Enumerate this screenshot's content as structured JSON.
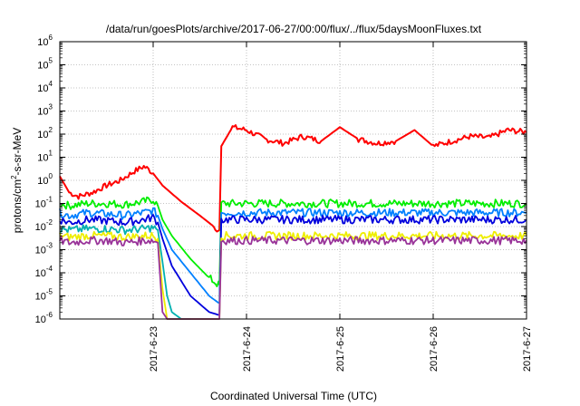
{
  "chart_data": {
    "type": "line",
    "title": "/data/run/goesPlots/archive/2017-06-27/00:00/flux/../flux/5daysMoonFluxes.txt",
    "xlabel": "Coordinated Universal Time (UTC)",
    "ylabel": "protons/cm2-s-sr-MeV",
    "ylabel_parts": {
      "a": "protons/cm",
      "sup": "2",
      "b": "-s-sr-MeV"
    },
    "yscale": "log",
    "ylim": [
      1e-06,
      1000000.0
    ],
    "xlim": [
      "2017-06-22 00:00",
      "2017-06-27 00:00"
    ],
    "grid": true,
    "y_ticks": [
      {
        "value": 1e-06,
        "base": "10",
        "exp": "-6"
      },
      {
        "value": 1e-05,
        "base": "10",
        "exp": "-5"
      },
      {
        "value": 0.0001,
        "base": "10",
        "exp": "-4"
      },
      {
        "value": 0.001,
        "base": "10",
        "exp": "-3"
      },
      {
        "value": 0.01,
        "base": "10",
        "exp": "-2"
      },
      {
        "value": 0.1,
        "base": "10",
        "exp": "-1"
      },
      {
        "value": 1,
        "base": "10",
        "exp": "0"
      },
      {
        "value": 10.0,
        "base": "10",
        "exp": "1"
      },
      {
        "value": 100.0,
        "base": "10",
        "exp": "2"
      },
      {
        "value": 1000.0,
        "base": "10",
        "exp": "3"
      },
      {
        "value": 10000.0,
        "base": "10",
        "exp": "4"
      },
      {
        "value": 100000.0,
        "base": "10",
        "exp": "5"
      },
      {
        "value": 1000000.0,
        "base": "10",
        "exp": "6"
      }
    ],
    "x_ticks": [
      {
        "label": "2017-6-23",
        "day": 1
      },
      {
        "label": "2017-6-24",
        "day": 2
      },
      {
        "label": "2017-6-25",
        "day": 3
      },
      {
        "label": "2017-6-26",
        "day": 4
      },
      {
        "label": "2017-6-27",
        "day": 5
      }
    ],
    "series": [
      {
        "color": "#ff0000",
        "x": [
          0,
          0.1,
          0.2,
          0.35,
          0.5,
          0.65,
          0.8,
          0.9,
          0.95,
          1.0,
          1.1,
          1.3,
          1.5,
          1.65,
          1.7,
          1.71,
          1.73,
          1.85,
          2.0,
          2.2,
          2.4,
          2.6,
          2.8,
          3.0,
          3.2,
          3.4,
          3.6,
          3.8,
          4.0,
          4.2,
          4.4,
          4.6,
          4.8,
          5.0
        ],
        "y": [
          1.5,
          0.3,
          0.2,
          0.3,
          0.6,
          1.0,
          2.5,
          4,
          3,
          2,
          0.6,
          0.12,
          0.03,
          0.01,
          0.007,
          0.007,
          30,
          200,
          150,
          60,
          40,
          80,
          50,
          200,
          60,
          40,
          50,
          150,
          30,
          50,
          80,
          70,
          150,
          120
        ]
      },
      {
        "color": "#00ee00",
        "x": [
          0,
          0.1,
          0.3,
          0.5,
          0.7,
          0.9,
          1.0,
          1.05,
          1.1,
          1.2,
          1.4,
          1.6,
          1.7,
          1.71,
          1.73,
          1.8,
          2.0,
          2.5,
          3.0,
          3.5,
          4.0,
          4.5,
          5.0
        ],
        "y": [
          0.1,
          0.08,
          0.1,
          0.1,
          0.09,
          0.12,
          0.15,
          0.08,
          0.02,
          0.004,
          0.0004,
          6e-05,
          3e-05,
          3e-05,
          0.1,
          0.1,
          0.1,
          0.1,
          0.1,
          0.1,
          0.1,
          0.1,
          0.1
        ]
      },
      {
        "color": "#0080ff",
        "x": [
          0,
          0.1,
          0.3,
          0.5,
          0.7,
          0.9,
          1.0,
          1.05,
          1.1,
          1.2,
          1.4,
          1.6,
          1.7,
          1.71,
          1.73,
          1.8,
          2.0,
          2.5,
          3.0,
          3.5,
          4.0,
          4.5,
          5.0
        ],
        "y": [
          0.04,
          0.03,
          0.04,
          0.035,
          0.03,
          0.04,
          0.05,
          0.03,
          0.008,
          0.001,
          0.0001,
          1e-05,
          5e-06,
          5e-06,
          0.04,
          0.04,
          0.04,
          0.04,
          0.04,
          0.04,
          0.04,
          0.04,
          0.04
        ]
      },
      {
        "color": "#0000dd",
        "x": [
          0,
          0.1,
          0.3,
          0.5,
          0.7,
          0.9,
          1.0,
          1.05,
          1.1,
          1.2,
          1.4,
          1.6,
          1.7,
          1.71,
          1.73,
          1.8,
          2.0,
          2.5,
          3.0,
          3.5,
          4.0,
          4.5,
          5.0
        ],
        "y": [
          0.02,
          0.015,
          0.02,
          0.018,
          0.015,
          0.02,
          0.025,
          0.015,
          0.003,
          0.0002,
          1e-05,
          2e-06,
          1.5e-06,
          1.5e-06,
          0.02,
          0.02,
          0.02,
          0.02,
          0.02,
          0.02,
          0.02,
          0.02,
          0.02
        ]
      },
      {
        "color": "#00b0b0",
        "x": [
          0,
          0.1,
          0.3,
          0.5,
          0.7,
          0.9,
          1.0,
          1.05,
          1.1,
          1.15,
          1.2,
          1.3,
          1.4
        ],
        "y": [
          0.008,
          0.007,
          0.008,
          0.008,
          0.007,
          0.008,
          0.009,
          0.007,
          0.0003,
          1e-05,
          2e-06,
          1e-06,
          1e-06
        ]
      },
      {
        "color": "#eeee00",
        "x": [
          0,
          0.1,
          0.3,
          0.5,
          0.7,
          0.9,
          1.0,
          1.05,
          1.1,
          1.15,
          1.7,
          1.71,
          1.73,
          1.8,
          2.0,
          2.5,
          3.0,
          3.5,
          4.0,
          4.5,
          5.0
        ],
        "y": [
          0.004,
          0.0035,
          0.004,
          0.004,
          0.0035,
          0.004,
          0.004,
          0.003,
          2e-05,
          1e-06,
          1e-06,
          1e-06,
          0.004,
          0.004,
          0.004,
          0.004,
          0.004,
          0.004,
          0.004,
          0.004,
          0.004
        ]
      },
      {
        "color": "#993399",
        "x": [
          0,
          0.1,
          0.3,
          0.5,
          0.7,
          0.9,
          1.0,
          1.05,
          1.1,
          1.15,
          1.7,
          1.71,
          1.73,
          1.8,
          2.0,
          2.5,
          3.0,
          3.5,
          4.0,
          4.5,
          5.0
        ],
        "y": [
          0.0025,
          0.002,
          0.0025,
          0.0025,
          0.002,
          0.0025,
          0.0025,
          0.002,
          2e-06,
          1e-06,
          1e-06,
          1e-06,
          0.0025,
          0.0025,
          0.0025,
          0.0025,
          0.0025,
          0.0025,
          0.0025,
          0.0025,
          0.0025
        ]
      }
    ]
  }
}
